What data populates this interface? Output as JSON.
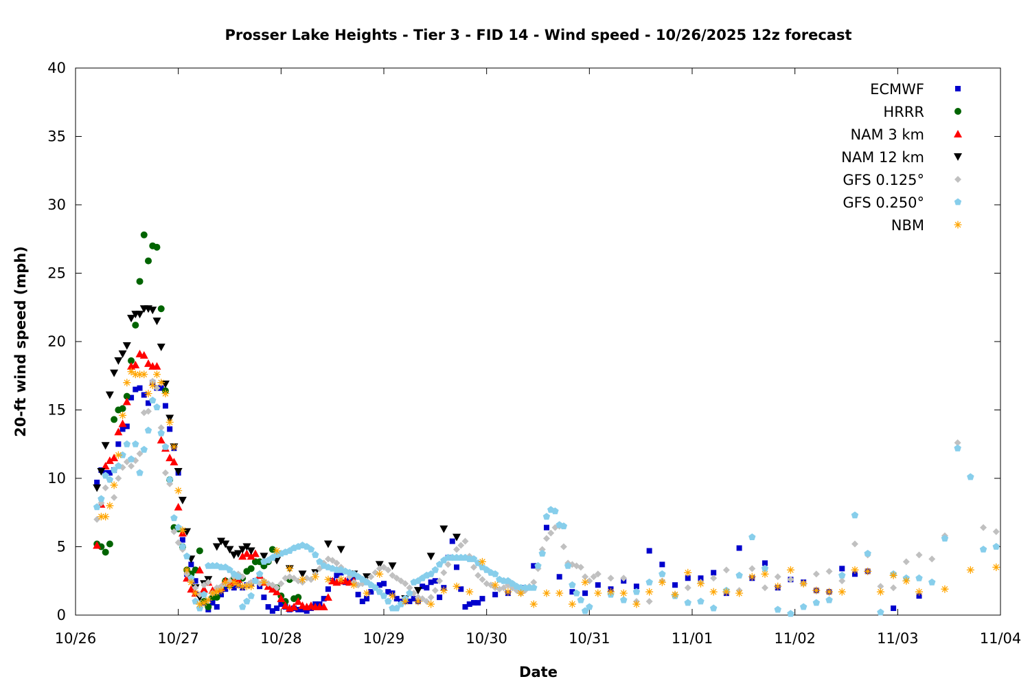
{
  "chart_data": {
    "type": "scatter",
    "title": "Prosser Lake Heights - Tier 3 - FID 14 - Wind speed - 10/26/2025 12z forecast",
    "xlabel": "Date",
    "ylabel": "20-ft wind speed (mph)",
    "x_time_format": "MM/DD HH:MM",
    "xlim": [
      "10/26 00:00",
      "11/04 00:00"
    ],
    "ylim": [
      0,
      40
    ],
    "x_ticks": [
      "10/26",
      "10/27",
      "10/28",
      "10/29",
      "10/30",
      "10/31",
      "11/01",
      "11/02",
      "11/03",
      "11/04"
    ],
    "y_ticks": [
      0,
      5,
      10,
      15,
      20,
      25,
      30,
      35,
      40
    ],
    "grid": false,
    "legend_position": "top-right",
    "series": [
      {
        "name": "ECMWF",
        "color": "#0000cc",
        "marker": "square",
        "segments": [
          {
            "start": "10/26 05:00",
            "step_hours": 1,
            "values": [
              9.7,
              10.6,
              10.4,
              10.4,
              10.6,
              12.5,
              13.6,
              13.8,
              15.9,
              16.5,
              16.6,
              16.1,
              15.5,
              17.0,
              16.6,
              16.6,
              15.3,
              13.6,
              12.2,
              10.4,
              5.5,
              3.0,
              3.7,
              2.5,
              1.5,
              0.9,
              0.4,
              0.9,
              0.6,
              1.5,
              1.9,
              2.3,
              2.0,
              2.2,
              2.0,
              2.2,
              2.3,
              2.5,
              2.1,
              1.3,
              0.6,
              0.3,
              0.5,
              0.8,
              0.6,
              0.4,
              0.5,
              0.4,
              0.4,
              0.3,
              0.5,
              0.8,
              0.8,
              1.2,
              1.9,
              2.5,
              2.9,
              3.1,
              2.4,
              2.6,
              2.8,
              1.5,
              1.0,
              1.2,
              1.7,
              2.0,
              2.2,
              2.3,
              1.7,
              1.6,
              1.2,
              1.0,
              1.0,
              1.0,
              1.2,
              1.0,
              2.1,
              2.0,
              2.4,
              2.5,
              1.3,
              2.0,
              4.2,
              5.4,
              3.5,
              1.9,
              0.6,
              0.8,
              0.9,
              0.9,
              1.2
            ]
          },
          {
            "start": "10/30 02:00",
            "step_hours": 3,
            "values": [
              1.5,
              1.6,
              2.0,
              3.6,
              6.4,
              2.8,
              1.7,
              1.6,
              2.2,
              1.9,
              2.5,
              2.1,
              4.7,
              3.7,
              2.2,
              2.7,
              2.7,
              3.1,
              1.6,
              4.9,
              2.7,
              3.8,
              2.0,
              2.6,
              2.4,
              1.8,
              1.7,
              3.4,
              3.0,
              3.2
            ]
          },
          {
            "start": "11/02 23:00",
            "step_hours": 6,
            "values": [
              0.5,
              1.4
            ]
          }
        ]
      },
      {
        "name": "HRRR",
        "color": "#006400",
        "marker": "circle",
        "segments": [
          {
            "start": "10/26 05:00",
            "step_hours": 1,
            "values": [
              5.2,
              5.0,
              4.6,
              5.2,
              14.3,
              15.0,
              15.1,
              16.0,
              18.6,
              21.2,
              24.4,
              27.8,
              25.9,
              27.0,
              26.9,
              22.4,
              16.4,
              9.9,
              6.4,
              6.3,
              5.0,
              3.3,
              3.0,
              3.3,
              4.7,
              1.0,
              0.6,
              1.3,
              1.3,
              2.0,
              2.5,
              2.2,
              2.7,
              2.9,
              2.7,
              3.2,
              3.4,
              3.9,
              3.9,
              3.6,
              3.9,
              4.8,
              2.0,
              1.4,
              1.0,
              2.6,
              1.2,
              1.3
            ]
          }
        ]
      },
      {
        "name": "NAM 3 km",
        "color": "#ff0000",
        "marker": "triangle-up",
        "segments": [
          {
            "start": "10/26 05:00",
            "step_hours": 1,
            "values": [
              5.1,
              8.1,
              10.9,
              11.3,
              11.5,
              13.4,
              14.0,
              15.6,
              18.2,
              18.3,
              19.1,
              19.0,
              18.4,
              18.2,
              18.2,
              12.8,
              12.2,
              11.5,
              11.2,
              7.9,
              6.0,
              2.7,
              1.9,
              1.6,
              3.3,
              1.9,
              2.4,
              1.8,
              1.9,
              2.0,
              2.5,
              2.4,
              2.5,
              2.6,
              4.3,
              4.5,
              4.3,
              4.5,
              2.9,
              2.4,
              2.1,
              1.9,
              1.7,
              1.2,
              0.7,
              0.5,
              0.6,
              1.0,
              0.7,
              0.6,
              0.7,
              0.6,
              0.6,
              0.6,
              1.3,
              2.5,
              2.4,
              2.5,
              2.5,
              2.4,
              2.5
            ]
          }
        ]
      },
      {
        "name": "NAM 12 km",
        "color": "#000000",
        "marker": "triangle-down",
        "segments": [
          {
            "start": "10/26 05:00",
            "step_hours": 1,
            "values": [
              9.3,
              10.5,
              12.4,
              16.1,
              17.7,
              18.6,
              19.1,
              19.7,
              21.7,
              22.0,
              22.0,
              22.4,
              22.4,
              22.3,
              21.5,
              19.6,
              16.9,
              14.4,
              12.3,
              10.5,
              8.4,
              6.1,
              4.1,
              2.0,
              1.3,
              2.3,
              2.6
            ]
          },
          {
            "start": "10/27 09:00",
            "step_hours": 1,
            "values": [
              5.0,
              5.4,
              5.2,
              4.8,
              4.4,
              4.5,
              4.8,
              5.0,
              4.7
            ]
          },
          {
            "start": "10/27 20:00",
            "step_hours": 3,
            "values": [
              4.3,
              4.0,
              3.4,
              3.0,
              3.1,
              5.2,
              4.8,
              3.0,
              2.8,
              3.7,
              3.6,
              1.2,
              1.8,
              4.3,
              6.3,
              5.7
            ]
          }
        ]
      },
      {
        "name": "GFS 0.125°",
        "color": "#c0c0c0",
        "marker": "diamond",
        "segments": [
          {
            "start": "10/26 05:00",
            "step_hours": 1,
            "values": [
              7.0,
              8.2,
              9.3,
              9.9,
              8.6,
              10.0,
              10.8,
              11.2,
              10.9,
              11.3,
              11.8,
              14.8,
              14.9,
              17.1,
              16.6,
              13.7,
              10.4,
              9.6,
              6.1,
              5.3,
              4.8,
              3.0,
              2.5,
              2.0,
              1.5,
              2.2,
              2.4,
              1.6,
              2.0,
              2.1,
              2.3,
              2.5,
              2.8,
              3.0,
              2.8,
              2.2,
              2.4,
              2.5,
              2.3,
              2.5,
              2.3,
              2.2,
              2.0,
              2.3,
              2.7,
              2.8,
              2.7,
              2.5,
              2.4,
              2.7,
              2.6,
              3.0,
              3.4,
              3.8,
              4.1,
              4.0,
              3.8,
              3.5,
              3.2,
              2.8,
              2.4,
              2.2,
              2.3,
              2.5,
              2.8,
              3.1,
              3.4,
              3.5,
              3.3,
              2.9,
              2.7,
              2.5,
              2.3,
              2.0,
              1.6,
              1.3,
              1.2,
              1.0,
              1.3,
              1.8,
              2.5,
              3.1,
              3.7,
              4.2,
              4.8,
              5.1,
              5.4,
              4.3,
              3.5,
              2.9,
              2.6,
              2.3,
              2.2,
              2.0,
              1.9,
              2.0,
              2.2,
              2.0,
              1.8,
              1.6,
              1.8,
              2.1,
              2.4,
              3.4,
              4.8,
              5.6,
              6.0,
              6.4,
              6.5,
              5.0,
              3.8,
              3.7,
              3.6,
              3.5,
              2.8,
              2.5,
              2.8,
              3.0
            ]
          },
          {
            "start": "10/31 05:00",
            "step_hours": 3,
            "values": [
              2.7,
              2.7,
              1.0,
              1.0,
              2.5,
              1.5,
              2.0,
              2.4,
              2.7,
              3.3,
              1.8,
              3.4,
              2.0,
              2.8,
              2.6,
              2.3,
              3.0,
              3.2,
              2.5,
              5.2,
              4.4,
              2.1,
              2.0,
              3.9,
              4.4,
              4.1,
              5.8,
              12.6
            ]
          },
          {
            "start": "11/03 20:00",
            "step_hours": 3,
            "values": [
              6.4,
              6.1
            ]
          }
        ]
      },
      {
        "name": "GFS 0.250°",
        "color": "#87ceeb",
        "marker": "pentagon",
        "segments": [
          {
            "start": "10/26 05:00",
            "step_hours": 1,
            "values": [
              7.9,
              8.5,
              10.2,
              9.9,
              10.6,
              10.9,
              11.7,
              12.5,
              11.4,
              12.5,
              10.4,
              12.1,
              13.5,
              15.7,
              15.2,
              13.3,
              12.3,
              9.9,
              7.1,
              6.4,
              5.0,
              4.3,
              2.7,
              1.0,
              0.5,
              1.5,
              3.6,
              3.6,
              3.6,
              3.5,
              3.5,
              3.3,
              3.0,
              2.8,
              0.6,
              1.0,
              1.4,
              2.5,
              3.0,
              3.9,
              4.0,
              4.2,
              4.4,
              4.5,
              4.6,
              4.7,
              4.9,
              5.0,
              5.1,
              5.0,
              4.8,
              4.4,
              3.9,
              3.6,
              3.5,
              3.4,
              3.3,
              3.3,
              3.2,
              3.1,
              3.0,
              2.8,
              2.6,
              2.4,
              2.2,
              2.0,
              1.7,
              1.4,
              1.0,
              0.5,
              0.5,
              0.8,
              1.2,
              1.6,
              2.4,
              2.5,
              2.7,
              2.9,
              3.0,
              3.3,
              3.7,
              4.0,
              4.2,
              4.2,
              4.2,
              4.2,
              4.2,
              4.1,
              4.1,
              3.8,
              3.5,
              3.3,
              3.1,
              3.0,
              2.6,
              2.5,
              2.5,
              2.3,
              2.1,
              2.0,
              2.0,
              2.0,
              2.0,
              3.6,
              4.5,
              7.2,
              7.7,
              7.6,
              6.6,
              6.5,
              3.6,
              2.2,
              1.6,
              1.1,
              0.3,
              0.6
            ]
          },
          {
            "start": "10/31 05:00",
            "step_hours": 3,
            "values": [
              1.5,
              1.1,
              1.7,
              2.4,
              3.0,
              1.4,
              0.9,
              1.0,
              0.5,
              1.8,
              2.9,
              5.7,
              3.4,
              0.4,
              0.1,
              0.6,
              0.9,
              1.1,
              2.9,
              7.3,
              4.5,
              0.2,
              3.0,
              2.7,
              2.7,
              2.4,
              5.6,
              12.2,
              10.1,
              4.8,
              5.0
            ]
          }
        ]
      },
      {
        "name": "NBM",
        "color": "#ffa500",
        "marker": "asterisk",
        "segments": [
          {
            "start": "10/26 06:00",
            "step_hours": 1,
            "values": [
              7.2,
              7.2,
              8.0,
              9.5,
              11.7,
              14.6,
              17.0,
              17.8,
              17.6,
              17.6,
              17.6,
              16.2,
              16.8,
              17.6,
              17.0,
              16.2,
              14.1,
              12.3,
              9.1,
              6.2,
              3.3,
              2.4,
              1.6,
              0.8,
              0.9,
              1.1,
              1.6,
              1.7,
              1.8,
              2.4,
              2.1,
              2.4,
              2.2,
              2.1,
              2.1,
              2.1
            ]
          },
          {
            "start": "10/27 20:00",
            "step_hours": 3,
            "values": [
              2.4,
              4.7,
              3.4,
              2.6,
              2.8,
              2.6,
              2.6,
              2.2,
              1.6,
              3.0,
              1.4,
              1.0,
              1.0,
              0.8,
              1.8,
              2.1,
              1.7,
              3.9,
              2.2,
              1.7,
              1.6,
              0.8,
              1.6,
              1.6,
              0.8,
              2.4,
              1.6,
              1.7,
              1.6,
              0.8,
              1.7,
              2.4,
              1.5,
              3.1,
              2.3,
              1.7,
              1.7,
              1.6,
              2.8,
              3.0,
              2.1,
              3.3,
              2.3,
              1.8,
              1.7,
              1.7,
              3.3,
              3.2,
              1.7,
              2.9,
              2.5,
              1.7
            ]
          },
          {
            "start": "11/03 11:00",
            "step_hours": 6,
            "values": [
              1.9,
              3.3,
              3.5
            ]
          }
        ]
      }
    ]
  }
}
